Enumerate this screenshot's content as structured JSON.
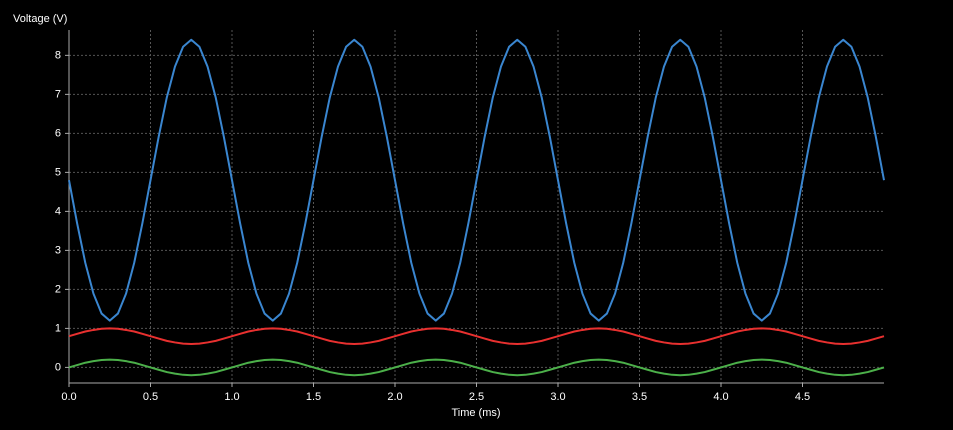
{
  "chart_data": {
    "type": "line",
    "y_label": "Voltage (V)",
    "x_label": "Time (ms)",
    "xlim": [
      0,
      5
    ],
    "ylim": [
      -0.4,
      8.65
    ],
    "xticks": [
      {
        "value": 0,
        "label": "0.0"
      },
      0.5,
      {
        "value": 1,
        "label": "1.0"
      },
      1.5,
      {
        "value": 2,
        "label": "2.0"
      },
      2.5,
      {
        "value": 3,
        "label": "3.0"
      },
      3.5,
      {
        "value": 4,
        "label": "4.0"
      },
      4.5
    ],
    "yticks": [
      0,
      1,
      2,
      3,
      4,
      5,
      6,
      7,
      8
    ],
    "grid": true,
    "x": [
      0,
      0.05,
      0.1,
      0.15,
      0.2,
      0.25,
      0.3,
      0.35,
      0.4,
      0.45,
      0.5,
      0.55,
      0.6,
      0.65,
      0.7,
      0.75,
      0.8,
      0.85,
      0.9,
      0.95,
      1,
      1.05,
      1.1,
      1.15,
      1.2,
      1.25,
      1.3,
      1.35,
      1.4,
      1.45,
      1.5,
      1.55,
      1.6,
      1.65,
      1.7,
      1.75,
      1.8,
      1.85,
      1.9,
      1.95,
      2,
      2.05,
      2.1,
      2.15,
      2.2,
      2.25,
      2.3,
      2.35,
      2.4,
      2.45,
      2.5,
      2.55,
      2.6,
      2.65,
      2.7,
      2.75,
      2.8,
      2.85,
      2.9,
      2.95,
      3,
      3.05,
      3.1,
      3.15,
      3.2,
      3.25,
      3.3,
      3.35,
      3.4,
      3.45,
      3.5,
      3.55,
      3.6,
      3.65,
      3.7,
      3.75,
      3.8,
      3.85,
      3.9,
      3.95,
      4,
      4.05,
      4.1,
      4.15,
      4.2,
      4.25,
      4.3,
      4.35,
      4.4,
      4.45,
      4.5,
      4.55,
      4.6,
      4.65,
      4.7,
      4.75,
      4.8,
      4.85,
      4.9,
      4.95,
      5
    ],
    "series": [
      {
        "color": "#3a86d0",
        "values": [
          4.8,
          3.69,
          2.68,
          1.89,
          1.38,
          1.2,
          1.38,
          1.89,
          2.68,
          3.69,
          4.8,
          5.91,
          6.92,
          7.71,
          8.22,
          8.4,
          8.22,
          7.71,
          6.92,
          5.91,
          4.8,
          3.69,
          2.68,
          1.89,
          1.38,
          1.2,
          1.38,
          1.89,
          2.68,
          3.69,
          4.8,
          5.91,
          6.92,
          7.71,
          8.22,
          8.4,
          8.22,
          7.71,
          6.92,
          5.91,
          4.8,
          3.69,
          2.68,
          1.89,
          1.38,
          1.2,
          1.38,
          1.89,
          2.68,
          3.69,
          4.8,
          5.91,
          6.92,
          7.71,
          8.22,
          8.4,
          8.22,
          7.71,
          6.92,
          5.91,
          4.8,
          3.69,
          2.68,
          1.89,
          1.38,
          1.2,
          1.38,
          1.89,
          2.68,
          3.69,
          4.8,
          5.91,
          6.92,
          7.71,
          8.22,
          8.4,
          8.22,
          7.71,
          6.92,
          5.91,
          4.8,
          3.69,
          2.68,
          1.89,
          1.38,
          1.2,
          1.38,
          1.89,
          2.68,
          3.69,
          4.8,
          5.91,
          6.92,
          7.71,
          8.22,
          8.4,
          8.22,
          7.71,
          6.92,
          5.91,
          4.8
        ]
      },
      {
        "color": "#e8302f",
        "values": [
          0.8,
          0.86,
          0.92,
          0.96,
          0.99,
          1,
          0.99,
          0.96,
          0.92,
          0.86,
          0.8,
          0.74,
          0.68,
          0.64,
          0.61,
          0.6,
          0.61,
          0.64,
          0.68,
          0.74,
          0.8,
          0.86,
          0.92,
          0.96,
          0.99,
          1,
          0.99,
          0.96,
          0.92,
          0.86,
          0.8,
          0.74,
          0.68,
          0.64,
          0.61,
          0.6,
          0.61,
          0.64,
          0.68,
          0.74,
          0.8,
          0.86,
          0.92,
          0.96,
          0.99,
          1,
          0.99,
          0.96,
          0.92,
          0.86,
          0.8,
          0.74,
          0.68,
          0.64,
          0.61,
          0.6,
          0.61,
          0.64,
          0.68,
          0.74,
          0.8,
          0.86,
          0.92,
          0.96,
          0.99,
          1,
          0.99,
          0.96,
          0.92,
          0.86,
          0.8,
          0.74,
          0.68,
          0.64,
          0.61,
          0.6,
          0.61,
          0.64,
          0.68,
          0.74,
          0.8,
          0.86,
          0.92,
          0.96,
          0.99,
          1,
          0.99,
          0.96,
          0.92,
          0.86,
          0.8,
          0.74,
          0.68,
          0.64,
          0.61,
          0.6,
          0.61,
          0.64,
          0.68,
          0.74,
          0.8
        ]
      },
      {
        "color": "#4cb04a",
        "values": [
          0,
          0.06,
          0.12,
          0.16,
          0.19,
          0.2,
          0.19,
          0.16,
          0.12,
          0.06,
          0,
          -0.06,
          -0.12,
          -0.16,
          -0.19,
          -0.2,
          -0.19,
          -0.16,
          -0.12,
          -0.06,
          0,
          0.06,
          0.12,
          0.16,
          0.19,
          0.2,
          0.19,
          0.16,
          0.12,
          0.06,
          0,
          -0.06,
          -0.12,
          -0.16,
          -0.19,
          -0.2,
          -0.19,
          -0.16,
          -0.12,
          -0.06,
          0,
          0.06,
          0.12,
          0.16,
          0.19,
          0.2,
          0.19,
          0.16,
          0.12,
          0.06,
          0,
          -0.06,
          -0.12,
          -0.16,
          -0.19,
          -0.2,
          -0.19,
          -0.16,
          -0.12,
          -0.06,
          0,
          0.06,
          0.12,
          0.16,
          0.19,
          0.2,
          0.19,
          0.16,
          0.12,
          0.06,
          0,
          -0.06,
          -0.12,
          -0.16,
          -0.19,
          -0.2,
          -0.19,
          -0.16,
          -0.12,
          -0.06,
          0,
          0.06,
          0.12,
          0.16,
          0.19,
          0.2,
          0.19,
          0.16,
          0.12,
          0.06,
          0,
          -0.06,
          -0.12,
          -0.16,
          -0.19,
          -0.2,
          -0.19,
          -0.16,
          -0.12,
          -0.06,
          0
        ]
      }
    ]
  }
}
